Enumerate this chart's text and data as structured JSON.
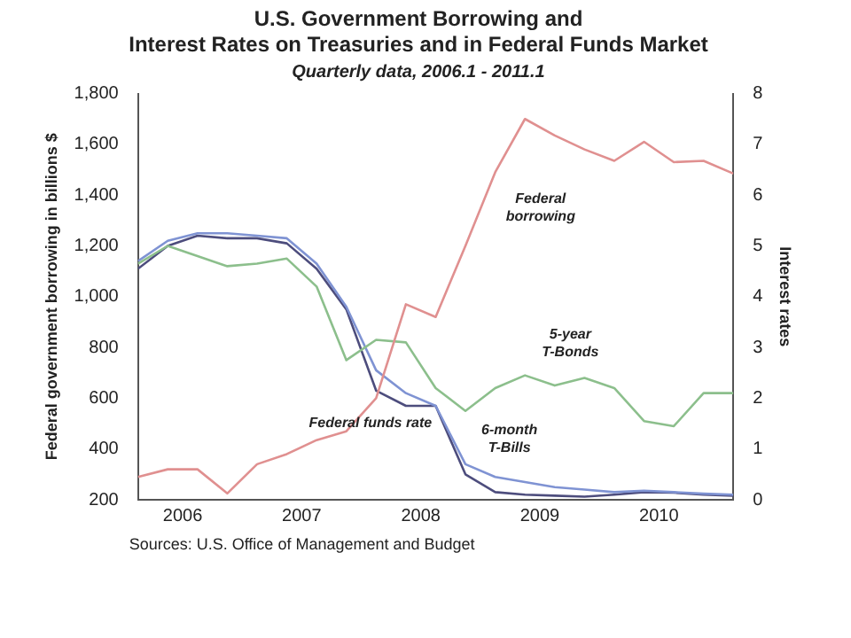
{
  "chart_data": {
    "type": "line",
    "title": "U.S. Government Borrowing and\nInterest Rates on Treasuries and in Federal Funds Market",
    "subtitle": "Quarterly data, 2006.1 - 2011.1",
    "ylabel": "Federal government borrowing in billions $",
    "y2label": "Interest rates",
    "annotations": [
      "Sources: U.S. Office of Management and Budget"
    ],
    "x": [
      2006,
      2006.25,
      2006.5,
      2006.75,
      2007,
      2007.25,
      2007.5,
      2007.75,
      2008,
      2008.25,
      2008.5,
      2008.75,
      2009,
      2009.25,
      2009.5,
      2009.75,
      2010,
      2010.25,
      2010.5,
      2010.75,
      2011
    ],
    "xlim": [
      2006,
      2011
    ],
    "xticks": [
      {
        "value": 2006.375,
        "label": "2006"
      },
      {
        "value": 2007.375,
        "label": "2007"
      },
      {
        "value": 2008.375,
        "label": "2008"
      },
      {
        "value": 2009.375,
        "label": "2009"
      },
      {
        "value": 2010.375,
        "label": "2010"
      }
    ],
    "ylim": [
      200,
      1800
    ],
    "yticks": [
      200,
      400,
      600,
      800,
      {
        "value": 1000,
        "label": "1,000"
      },
      {
        "value": 1200,
        "label": "1,200"
      },
      {
        "value": 1400,
        "label": "1,400"
      },
      {
        "value": 1600,
        "label": "1,600"
      },
      {
        "value": 1800,
        "label": "1,800"
      }
    ],
    "y2lim": [
      0,
      8
    ],
    "y2ticks": [
      0,
      1,
      2,
      3,
      4,
      5,
      6,
      7,
      8
    ],
    "grid": false,
    "legend": false,
    "marker": "none",
    "series": [
      {
        "name": "Federal borrowing",
        "color": "#e09090",
        "values": [
          290,
          320,
          320,
          225,
          340,
          380,
          435,
          470,
          600,
          970,
          920,
          1200,
          1490,
          1700,
          1635,
          1580,
          1535,
          1610,
          1530,
          1535,
          1485
        ]
      },
      {
        "name": "5-year T-Bonds",
        "color": "#8cbf8c",
        "axis": "y2",
        "values": [
          4.65,
          5.0,
          4.8,
          4.6,
          4.65,
          4.75,
          4.2,
          2.75,
          3.15,
          3.1,
          2.2,
          1.75,
          2.2,
          2.45,
          2.25,
          2.4,
          2.2,
          1.55,
          1.45,
          2.1,
          2.1
        ]
      },
      {
        "name": "6-month T-Bills",
        "color": "#7f93d3",
        "axis": "y2",
        "values": [
          4.7,
          5.1,
          5.25,
          5.25,
          5.2,
          5.15,
          4.65,
          3.8,
          2.55,
          2.1,
          1.85,
          0.7,
          0.45,
          0.35,
          0.25,
          0.2,
          0.15,
          0.18,
          0.15,
          0.12,
          0.1
        ]
      },
      {
        "name": "Federal funds rate",
        "color": "#4d4d7d",
        "axis": "y2",
        "values": [
          4.55,
          5.0,
          5.2,
          5.15,
          5.15,
          5.05,
          4.55,
          3.75,
          2.15,
          1.85,
          1.85,
          0.5,
          0.15,
          0.1,
          0.08,
          0.06,
          0.1,
          0.15,
          0.14,
          0.1,
          0.08
        ]
      }
    ]
  }
}
